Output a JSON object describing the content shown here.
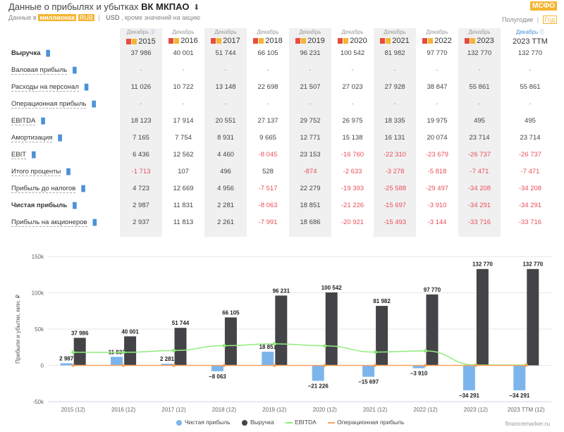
{
  "header": {
    "title": "Данные о прибылях и убытках",
    "company": "ВК МКПАО",
    "data_in": "Данные в",
    "unit_selected": "миллионах",
    "currency_selected": "RUB",
    "currency_alt": "USD",
    "note": ", кроме значений на акцию",
    "ticker_badge": "МСФО",
    "period_label": "Полугодие",
    "period_active": "Год"
  },
  "columns": [
    {
      "month": "Декабрь",
      "year": "2015",
      "info": true
    },
    {
      "month": "Декабрь",
      "year": "2016"
    },
    {
      "month": "Декабрь",
      "year": "2017"
    },
    {
      "month": "Декабрь",
      "year": "2018"
    },
    {
      "month": "Декабрь",
      "year": "2019"
    },
    {
      "month": "Декабрь",
      "year": "2020"
    },
    {
      "month": "Декабрь",
      "year": "2021"
    },
    {
      "month": "Декабрь",
      "year": "2022"
    },
    {
      "month": "Декабрь",
      "year": "2023"
    },
    {
      "month": "Декабрь",
      "year": "2023 TTM",
      "info": true
    }
  ],
  "rows": [
    {
      "label": "Выручка",
      "bold": true,
      "values": [
        "37 986",
        "40 001",
        "51 744",
        "66 105",
        "96 231",
        "100 542",
        "81 982",
        "97 770",
        "132 770",
        "132 770"
      ]
    },
    {
      "label": "Валовая прибыль",
      "values": [
        "-",
        "-",
        "-",
        "-",
        "-",
        "-",
        "-",
        "-",
        "-",
        "-"
      ]
    },
    {
      "label": "Расходы на персонал",
      "values": [
        "11 026",
        "10 722",
        "13 148",
        "22 698",
        "21 507",
        "27 023",
        "27 928",
        "38 847",
        "55 861",
        "55 861"
      ]
    },
    {
      "label": "Операционная прибыль",
      "values": [
        "-",
        "-",
        "-",
        "-",
        "-",
        "-",
        "-",
        "-",
        "-",
        "-"
      ]
    },
    {
      "label": "EBITDA",
      "values": [
        "18 123",
        "17 914",
        "20 551",
        "27 137",
        "29 752",
        "26 975",
        "18 335",
        "19 975",
        "495",
        "495"
      ]
    },
    {
      "label": "Амортизация",
      "values": [
        "7 165",
        "7 754",
        "8 931",
        "9 665",
        "12 771",
        "15 138",
        "16 131",
        "20 074",
        "23 714",
        "23 714"
      ]
    },
    {
      "label": "EBIT",
      "values": [
        "6 436",
        "12 562",
        "4 460",
        "-8 045",
        "23 153",
        "-16 760",
        "-22 310",
        "-23 679",
        "-26 737",
        "-26 737"
      ]
    },
    {
      "label": "Итого проценты",
      "values": [
        "-1 713",
        "107",
        "496",
        "528",
        "-874",
        "-2 633",
        "-3 278",
        "-5 818",
        "-7 471",
        "-7 471"
      ]
    },
    {
      "label": "Прибыль до налогов",
      "values": [
        "4 723",
        "12 669",
        "4 956",
        "-7 517",
        "22 279",
        "-19 393",
        "-25 588",
        "-29 497",
        "-34 208",
        "-34 208"
      ]
    },
    {
      "label": "Чистая прибыль",
      "bold": true,
      "values": [
        "2 987",
        "11 831",
        "2 281",
        "-8 063",
        "18 851",
        "-21 226",
        "-15 697",
        "-3 910",
        "-34 291",
        "-34 291"
      ]
    },
    {
      "label": "Прибыль на акционеров",
      "values": [
        "2 937",
        "11 813",
        "2 261",
        "-7 991",
        "18 686",
        "-20 921",
        "-15 493",
        "-3 144",
        "-33 716",
        "-33 716"
      ]
    }
  ],
  "chart_data": {
    "type": "bar",
    "ylabel": "Прибыли и убытки, млн. ₽",
    "ylim": [
      -50000,
      150000
    ],
    "yticks": [
      -50000,
      0,
      50000,
      100000,
      150000
    ],
    "ytick_labels": [
      "-50k",
      "0",
      "50k",
      "100k",
      "150k"
    ],
    "categories": [
      "2015 (12)",
      "2016 (12)",
      "2017 (12)",
      "2018 (12)",
      "2019 (12)",
      "2020 (12)",
      "2021 (12)",
      "2022 (12)",
      "2023 (12)",
      "2023 TTM (12)"
    ],
    "series": [
      {
        "name": "Чистая прибыль",
        "kind": "bar",
        "color": "#7cb5ec",
        "values": [
          2987,
          11831,
          2281,
          -8063,
          18851,
          -21226,
          -15697,
          -3910,
          -34291,
          -34291
        ],
        "labels": [
          "2 987",
          "11 831",
          "2 281",
          "−8 063",
          "18 851",
          "−21 226",
          "−15 697",
          "−3 910",
          "−34 291",
          "−34 291"
        ]
      },
      {
        "name": "Выручка",
        "kind": "bar",
        "color": "#434348",
        "values": [
          37986,
          40001,
          51744,
          66105,
          96231,
          100542,
          81982,
          97770,
          132770,
          132770
        ],
        "labels": [
          "37 986",
          "40 001",
          "51 744",
          "66 105",
          "96 231",
          "100 542",
          "81 982",
          "97 770",
          "132 770",
          "132 770"
        ]
      },
      {
        "name": "EBITDA",
        "kind": "line",
        "color": "#90ed7d",
        "values": [
          18123,
          17914,
          20551,
          27137,
          29752,
          26975,
          18335,
          19975,
          495,
          495
        ]
      },
      {
        "name": "Операционная прибыль",
        "kind": "line",
        "color": "#f7a35c",
        "values": [
          0,
          0,
          0,
          0,
          0,
          0,
          0,
          0,
          0,
          0
        ]
      }
    ],
    "watermark": "financemarker.ru"
  }
}
